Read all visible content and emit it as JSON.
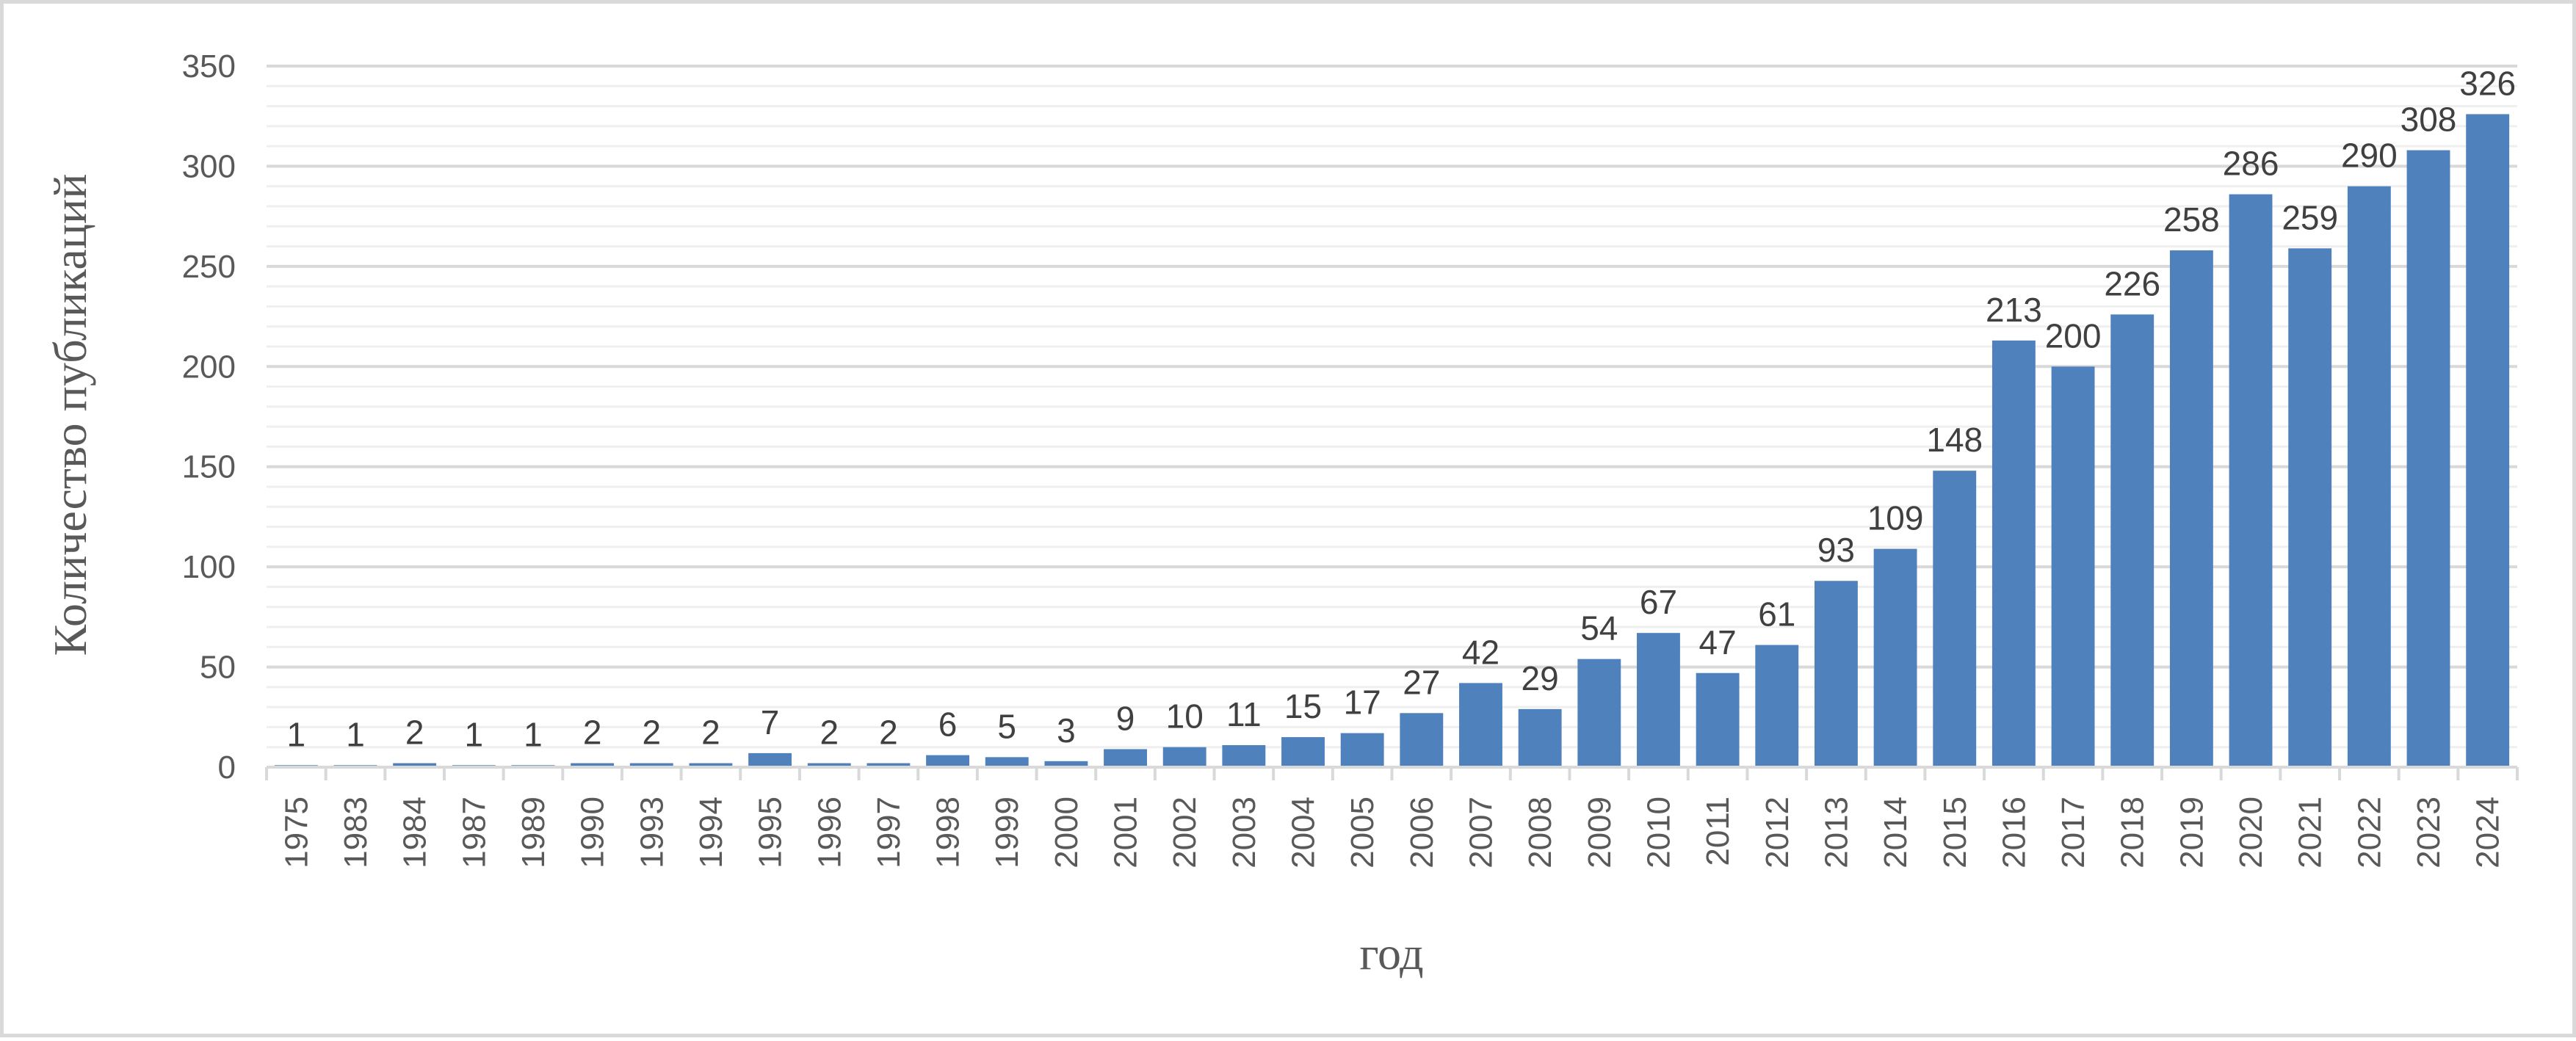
{
  "chart_data": {
    "type": "bar",
    "title": "",
    "xlabel": "год",
    "ylabel": "Количество публикаций",
    "ylim": [
      0,
      350
    ],
    "yticks": [
      0,
      50,
      100,
      150,
      200,
      250,
      300,
      350
    ],
    "grid": {
      "major": 50,
      "minor": 10
    },
    "legend": "none",
    "bar_color": "#4f81bd",
    "categories": [
      "1975",
      "1983",
      "1984",
      "1987",
      "1989",
      "1990",
      "1993",
      "1994",
      "1995",
      "1996",
      "1997",
      "1998",
      "1999",
      "2000",
      "2001",
      "2002",
      "2003",
      "2004",
      "2005",
      "2006",
      "2007",
      "2008",
      "2009",
      "2010",
      "2011",
      "2012",
      "2013",
      "2014",
      "2015",
      "2016",
      "2017",
      "2018",
      "2019",
      "2020",
      "2021",
      "2022",
      "2023",
      "2024"
    ],
    "values": [
      1,
      1,
      2,
      1,
      1,
      2,
      2,
      2,
      7,
      2,
      2,
      6,
      5,
      3,
      9,
      10,
      11,
      15,
      17,
      27,
      42,
      29,
      54,
      67,
      47,
      61,
      93,
      109,
      148,
      213,
      200,
      226,
      258,
      286,
      259,
      290,
      308,
      326
    ]
  }
}
